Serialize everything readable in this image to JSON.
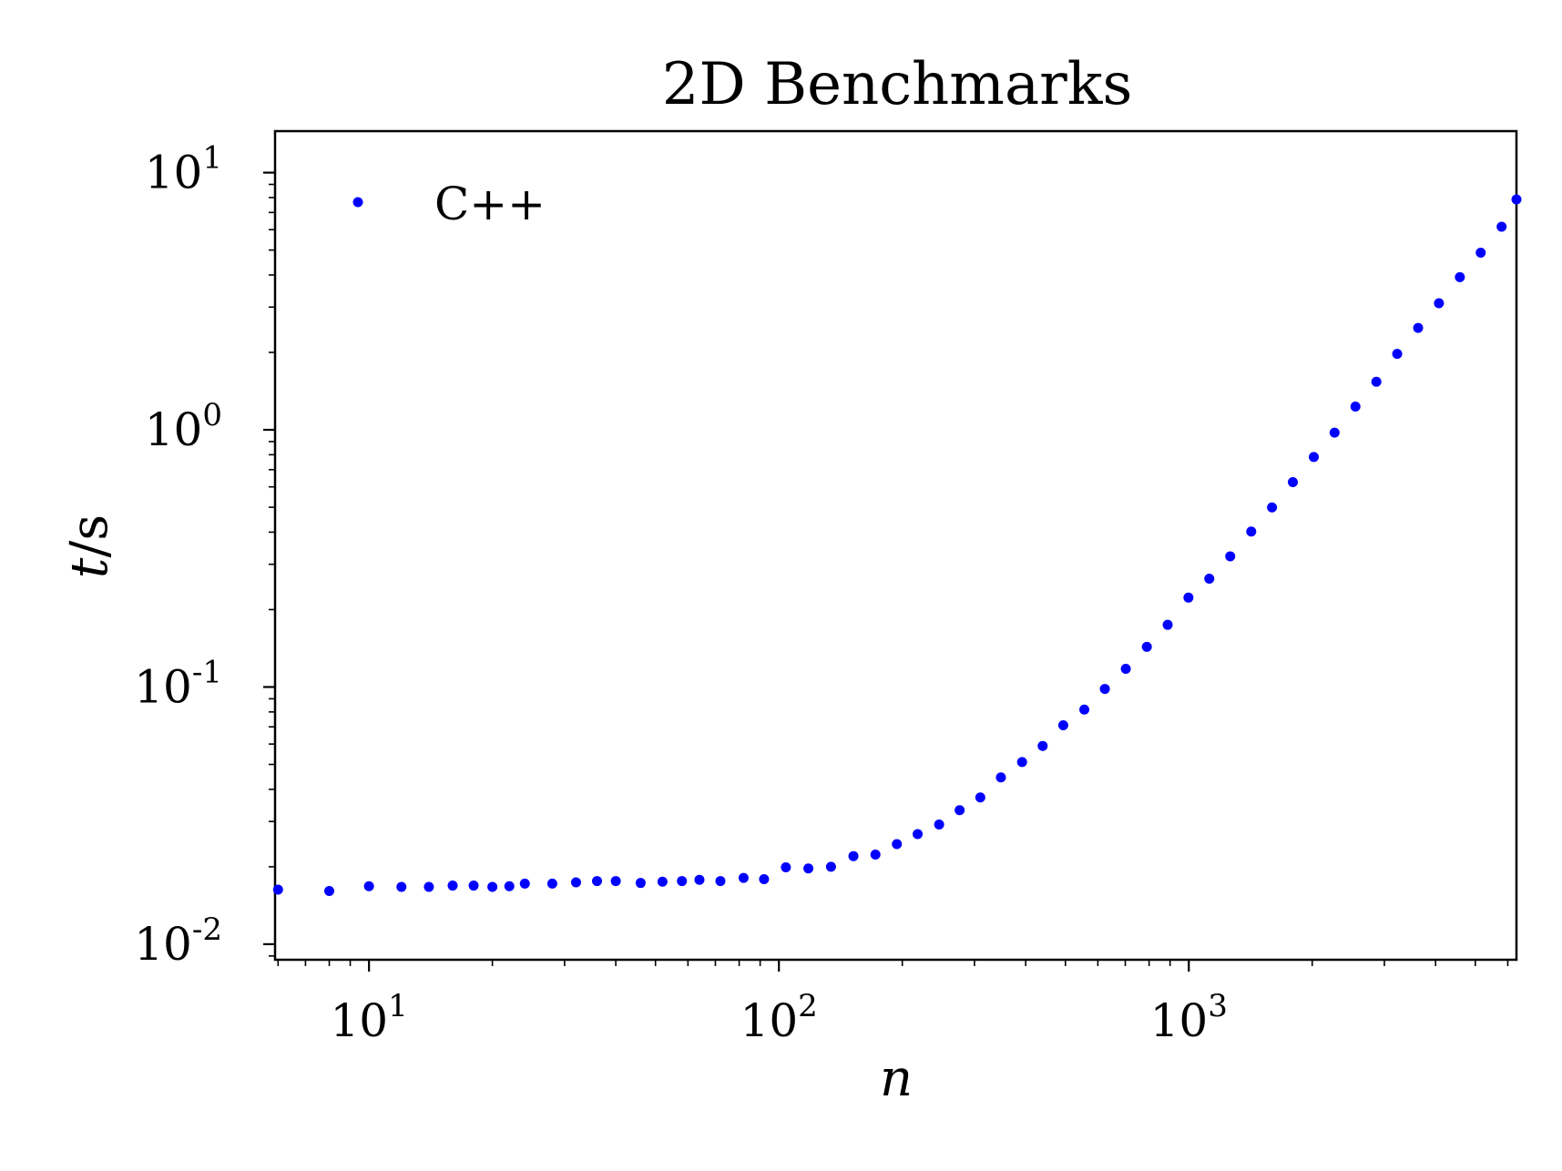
{
  "chart_data": {
    "type": "scatter",
    "title": "2D Benchmarks",
    "xlabel": "n",
    "ylabel_var": "t",
    "ylabel_unit": "/s",
    "xscale": "log",
    "yscale": "log",
    "xlim": [
      5.9,
      6300
    ],
    "ylim": [
      0.0087,
      14.5
    ],
    "x_ticks": [
      {
        "base": "10",
        "exp": "1"
      },
      {
        "base": "10",
        "exp": "2"
      },
      {
        "base": "10",
        "exp": "3"
      }
    ],
    "y_ticks": [
      {
        "base": "10",
        "exp": "-2"
      },
      {
        "base": "10",
        "exp": "-1"
      },
      {
        "base": "10",
        "exp": "0"
      },
      {
        "base": "10",
        "exp": "1"
      }
    ],
    "grid": false,
    "legend_position": "top-left",
    "series": [
      {
        "name": "C++",
        "color": "#0000ff",
        "marker": "dot",
        "x": [
          6,
          8,
          10,
          12,
          14,
          16,
          18,
          20,
          22,
          24,
          28,
          32,
          36,
          40,
          46,
          52,
          58,
          64,
          72,
          82,
          92,
          104,
          118,
          134,
          152,
          172,
          194,
          218,
          246,
          276,
          310,
          348,
          392,
          440,
          494,
          556,
          624,
          702,
          790,
          888,
          998,
          1122,
          1262,
          1420,
          1596,
          1794,
          2018,
          2268,
          2550,
          2868,
          3224,
          3626,
          4076,
          4584,
          5154,
          5796,
          6300
        ],
        "y": [
          0.0163,
          0.0161,
          0.0168,
          0.0167,
          0.0167,
          0.0169,
          0.0169,
          0.0167,
          0.0168,
          0.0172,
          0.0172,
          0.0174,
          0.0176,
          0.0176,
          0.0173,
          0.0175,
          0.0176,
          0.0178,
          0.0176,
          0.0181,
          0.0179,
          0.0199,
          0.0197,
          0.02,
          0.022,
          0.0223,
          0.0245,
          0.0268,
          0.0292,
          0.0332,
          0.0372,
          0.0445,
          0.0511,
          0.059,
          0.071,
          0.0817,
          0.0983,
          0.1177,
          0.1433,
          0.1745,
          0.2226,
          0.2638,
          0.3222,
          0.4022,
          0.4993,
          0.6259,
          0.7842,
          0.9751,
          1.2316,
          1.5371,
          1.9733,
          2.4893,
          3.1066,
          3.9229,
          4.8835,
          6.1588,
          7.87
        ]
      }
    ]
  }
}
